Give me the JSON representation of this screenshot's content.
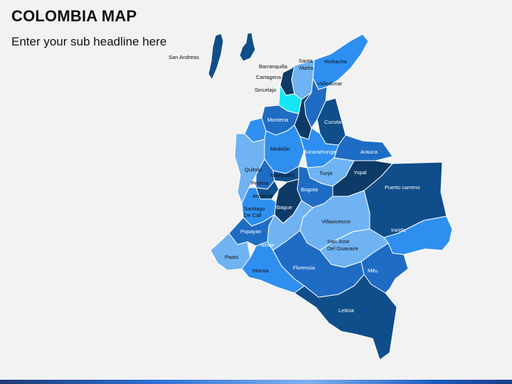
{
  "slide": {
    "title": "COLOMBIA MAP",
    "subtitle": "Enter your sub headline here"
  },
  "colors": {
    "navy": "#0d3a66",
    "dark": "#0f4e8a",
    "mid": "#1f6cc4",
    "bright": "#2e8ff0",
    "light": "#6fb3f3",
    "pale": "#8cc6f8",
    "cyan": "#14e6f5"
  },
  "regions": [
    {
      "id": "san-andres",
      "label": "San Andreas"
    },
    {
      "id": "barranquilla",
      "label": "Barranquilla"
    },
    {
      "id": "santa-marta",
      "label": "Santa Marta"
    },
    {
      "id": "riohacha",
      "label": "Riohacha"
    },
    {
      "id": "cartagena",
      "label": "Cartagena"
    },
    {
      "id": "valledupar",
      "label": "Valledunar"
    },
    {
      "id": "sincelejo",
      "label": "Sincelajo"
    },
    {
      "id": "monteria",
      "label": "Monteria"
    },
    {
      "id": "cucuta",
      "label": "Cucuta"
    },
    {
      "id": "medellin",
      "label": "Medellin"
    },
    {
      "id": "bucaramanga",
      "label": "Bucaramunga"
    },
    {
      "id": "arauca",
      "label": "Arauca"
    },
    {
      "id": "quibdo",
      "label": "Quibdo"
    },
    {
      "id": "manizales",
      "label": "Manizales"
    },
    {
      "id": "tunja",
      "label": "Tunja"
    },
    {
      "id": "yopal",
      "label": "Yopal"
    },
    {
      "id": "pereira",
      "label": "Pereira"
    },
    {
      "id": "bogota",
      "label": "Bogota"
    },
    {
      "id": "armenia",
      "label": "Armenia"
    },
    {
      "id": "puerto-carreno",
      "label": "Puerto carreno"
    },
    {
      "id": "ibague",
      "label": "Ibague"
    },
    {
      "id": "cali",
      "label": "Santiago De Cali"
    },
    {
      "id": "villavicencio",
      "label": "Villavicencio"
    },
    {
      "id": "inirida",
      "label": "Inirida"
    },
    {
      "id": "popayan",
      "label": "Popayan"
    },
    {
      "id": "neiva",
      "label": "Neiva"
    },
    {
      "id": "san-jose",
      "label": "San Jose Del Guavaire"
    },
    {
      "id": "pasto",
      "label": "Pasto"
    },
    {
      "id": "florencia",
      "label": "Florencia"
    },
    {
      "id": "mocoa",
      "label": "Mocoa"
    },
    {
      "id": "mitu",
      "label": "Mitu"
    },
    {
      "id": "leticia",
      "label": "Leticia"
    }
  ]
}
